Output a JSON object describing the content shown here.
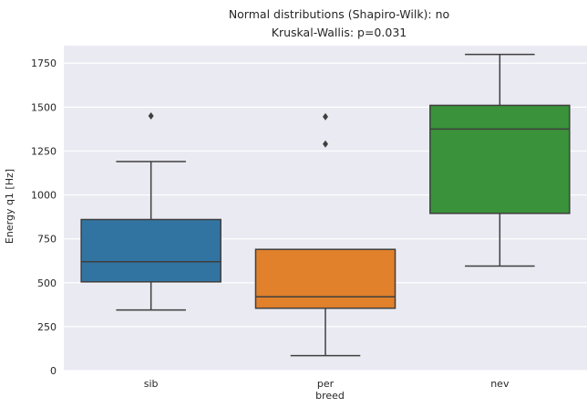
{
  "chart_data": {
    "type": "box",
    "title": [
      "Normal distributions (Shapiro-Wilk): no",
      "Kruskal-Wallis: p=0.031"
    ],
    "xlabel": "breed",
    "ylabel": "Energy q1 [Hz]",
    "ylim": [
      0,
      1850
    ],
    "yticks": [
      0,
      250,
      500,
      750,
      1000,
      1250,
      1500,
      1750
    ],
    "grid": true,
    "background": "#eaeaf2",
    "categories": [
      "sib",
      "per",
      "nev"
    ],
    "boxes": [
      {
        "category": "sib",
        "color": "#3274a1",
        "whisker_low": 345,
        "q1": 505,
        "median": 620,
        "q3": 860,
        "whisker_high": 1190,
        "outliers": [
          1450
        ]
      },
      {
        "category": "per",
        "color": "#e1812c",
        "whisker_low": 85,
        "q1": 355,
        "median": 420,
        "q3": 690,
        "whisker_high": 690,
        "outliers": [
          1290,
          1445
        ]
      },
      {
        "category": "nev",
        "color": "#3a923a",
        "whisker_low": 595,
        "q1": 895,
        "median": 1375,
        "q3": 1510,
        "whisker_high": 1800,
        "outliers": []
      }
    ]
  }
}
